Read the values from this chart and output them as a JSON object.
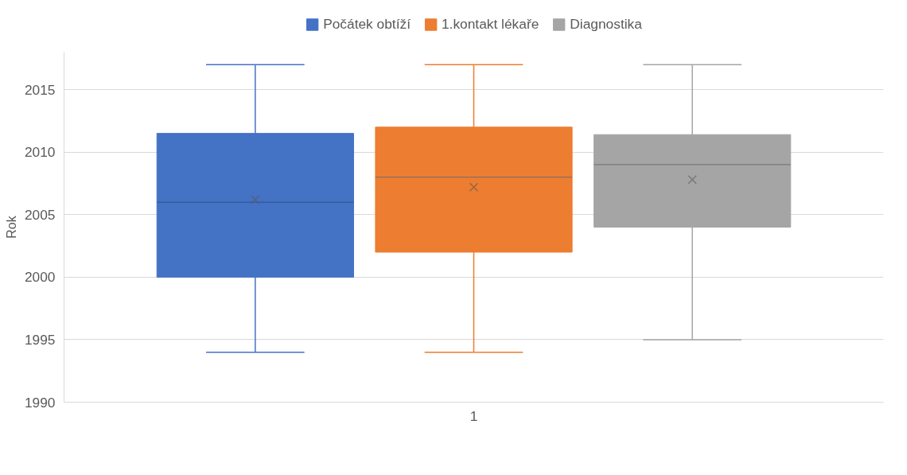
{
  "chart_data": {
    "type": "box",
    "ylabel": "Rok",
    "categories": [
      "1"
    ],
    "ylim": [
      1990,
      2018
    ],
    "yticks": [
      1990,
      1995,
      2000,
      2005,
      2010,
      2015
    ],
    "grid": "y",
    "legend": "top",
    "marker": "cross",
    "series": [
      {
        "name": "Počátek obtíží",
        "color": "#4472c4",
        "boxes": [
          {
            "low": 1994,
            "q1": 2000,
            "median": 2006,
            "q3": 2011.5,
            "high": 2017,
            "mean": 2006.2
          }
        ]
      },
      {
        "name": "1.kontakt lékaře",
        "color": "#ed7d31",
        "boxes": [
          {
            "low": 1994,
            "q1": 2002,
            "median": 2008,
            "q3": 2012,
            "high": 2017,
            "mean": 2007.2
          }
        ]
      },
      {
        "name": "Diagnostika",
        "color": "#a5a5a5",
        "boxes": [
          {
            "low": 1995,
            "q1": 2004,
            "median": 2009,
            "q3": 2011.4,
            "high": 2017,
            "mean": 2007.8
          }
        ]
      }
    ]
  }
}
